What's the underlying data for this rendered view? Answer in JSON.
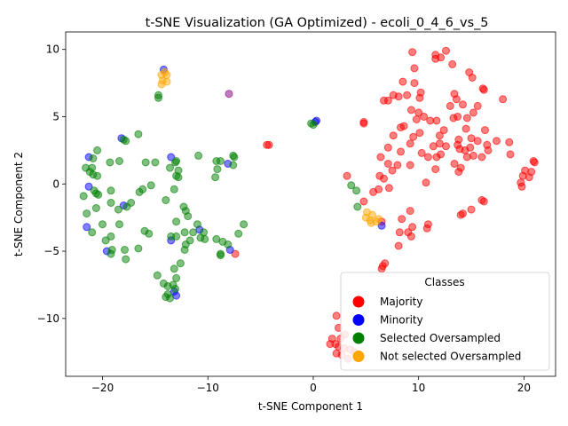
{
  "chart_data": {
    "type": "scatter",
    "title": "t-SNE Visualization (GA Optimized) - ecoli_0_4_6_vs_5",
    "xlabel": "t-SNE Component 1",
    "ylabel": "t-SNE Component 2",
    "xlim": [
      -23.5,
      23
    ],
    "ylim": [
      -14.3,
      11.3
    ],
    "xticks": [
      -20,
      -10,
      0,
      10,
      20
    ],
    "yticks": [
      -10,
      -5,
      0,
      5,
      10
    ],
    "grid": false,
    "legend": {
      "title": "Classes",
      "placement": "lower-right"
    },
    "series": [
      {
        "name": "Majority",
        "color": "#ff0000",
        "points": [
          [
            9.4,
            9.8
          ],
          [
            11.6,
            9.6
          ],
          [
            11.6,
            9.3
          ],
          [
            12.1,
            9.4
          ],
          [
            12.6,
            9.9
          ],
          [
            13.2,
            8.9
          ],
          [
            9.6,
            8.6
          ],
          [
            14.8,
            8.3
          ],
          [
            15.1,
            7.9
          ],
          [
            8.5,
            7.6
          ],
          [
            9.6,
            7.5
          ],
          [
            16.1,
            7.1
          ],
          [
            16.2,
            7.0
          ],
          [
            7.6,
            6.6
          ],
          [
            8.1,
            6.5
          ],
          [
            8.9,
            6.6
          ],
          [
            10.2,
            6.8
          ],
          [
            10.1,
            6.4
          ],
          [
            13.4,
            6.7
          ],
          [
            13.6,
            6.3
          ],
          [
            6.7,
            6.2
          ],
          [
            7.1,
            6.2
          ],
          [
            18.0,
            6.3
          ],
          [
            15.6,
            5.8
          ],
          [
            14.2,
            5.9
          ],
          [
            13.0,
            5.8
          ],
          [
            9.3,
            5.5
          ],
          [
            10.0,
            5.3
          ],
          [
            10.5,
            5.0
          ],
          [
            11.1,
            4.7
          ],
          [
            11.7,
            4.7
          ],
          [
            13.3,
            4.9
          ],
          [
            13.7,
            5.0
          ],
          [
            14.6,
            4.9
          ],
          [
            15.2,
            5.3
          ],
          [
            9.8,
            4.8
          ],
          [
            4.8,
            4.5
          ],
          [
            4.8,
            4.6
          ],
          [
            8.6,
            4.3
          ],
          [
            8.3,
            4.2
          ],
          [
            10.1,
            3.8
          ],
          [
            12.4,
            4.0
          ],
          [
            14.5,
            4.1
          ],
          [
            16.3,
            4.0
          ],
          [
            7.6,
            3.6
          ],
          [
            9.5,
            3.5
          ],
          [
            12.0,
            3.6
          ],
          [
            13.8,
            3.3
          ],
          [
            15.0,
            3.4
          ],
          [
            15.6,
            3.2
          ],
          [
            17.4,
            3.2
          ],
          [
            18.6,
            3.1
          ],
          [
            16.5,
            2.9
          ],
          [
            7.1,
            2.7
          ],
          [
            9.2,
            3.0
          ],
          [
            11.4,
            2.8
          ],
          [
            12.0,
            3.0
          ],
          [
            12.6,
            2.8
          ],
          [
            13.7,
            2.9
          ],
          [
            14.9,
            2.7
          ],
          [
            16.6,
            2.5
          ],
          [
            8.3,
            2.4
          ],
          [
            10.3,
            2.3
          ],
          [
            13.9,
            2.6
          ],
          [
            14.4,
            2.5
          ],
          [
            18.7,
            2.2
          ],
          [
            6.4,
            2.0
          ],
          [
            10.9,
            2.0
          ],
          [
            11.7,
            2.0
          ],
          [
            12.1,
            2.2
          ],
          [
            14.6,
            2.0
          ],
          [
            15.2,
            2.1
          ],
          [
            16.0,
            2.0
          ],
          [
            7.1,
            1.5
          ],
          [
            8.0,
            1.4
          ],
          [
            9.2,
            1.4
          ],
          [
            11.6,
            1.1
          ],
          [
            13.4,
            1.5
          ],
          [
            14.0,
            1.2
          ],
          [
            13.8,
            0.9
          ],
          [
            7.5,
            1.0
          ],
          [
            20.9,
            1.7
          ],
          [
            21.0,
            1.6
          ],
          [
            20.1,
            1.0
          ],
          [
            20.5,
            0.5
          ],
          [
            19.9,
            0.6
          ],
          [
            19.7,
            0.1
          ],
          [
            19.8,
            -0.2
          ],
          [
            20.7,
            0.9
          ],
          [
            3.2,
            0.6
          ],
          [
            6.3,
            0.6
          ],
          [
            6.7,
            0.4
          ],
          [
            10.7,
            0.1
          ],
          [
            6.2,
            -0.4
          ],
          [
            7.2,
            -0.3
          ],
          [
            5.7,
            -0.6
          ],
          [
            4.8,
            -1.3
          ],
          [
            16.0,
            -1.2
          ],
          [
            16.2,
            -1.3
          ],
          [
            15.0,
            -1.9
          ],
          [
            14.2,
            -2.2
          ],
          [
            14.0,
            -2.3
          ],
          [
            9.2,
            -2.0
          ],
          [
            8.4,
            -2.6
          ],
          [
            6.5,
            -2.8
          ],
          [
            10.9,
            -3.0
          ],
          [
            10.8,
            -3.3
          ],
          [
            9.4,
            -3.2
          ],
          [
            8.2,
            -3.6
          ],
          [
            9.0,
            -3.6
          ],
          [
            9.3,
            -3.9
          ],
          [
            8.1,
            -4.6
          ],
          [
            6.8,
            -5.9
          ],
          [
            6.6,
            -6.1
          ],
          [
            6.5,
            -6.3
          ],
          [
            -7.4,
            -5.2
          ],
          [
            -4.4,
            2.9
          ],
          [
            -4.2,
            2.9
          ],
          [
            2.2,
            -9.8
          ],
          [
            1.8,
            -11.5
          ],
          [
            2.6,
            -11.5
          ],
          [
            1.6,
            -11.9
          ],
          [
            2.1,
            -11.9
          ],
          [
            2.4,
            -12.1
          ],
          [
            2.9,
            -12.2
          ],
          [
            3.5,
            -12.3
          ],
          [
            2.2,
            -12.6
          ],
          [
            2.7,
            -12.7
          ],
          [
            3.3,
            -13.0
          ],
          [
            3.9,
            -12.5
          ],
          [
            2.4,
            -10.7
          ],
          [
            3.0,
            -11.2
          ]
        ]
      },
      {
        "name": "Minority",
        "color": "#0000ff",
        "points": [
          [
            -14.2,
            8.5
          ],
          [
            0.2,
            4.6
          ],
          [
            0.3,
            4.7
          ],
          [
            -18.2,
            3.4
          ],
          [
            -13.5,
            2.0
          ],
          [
            -21.3,
            2.0
          ],
          [
            -8.1,
            1.5
          ],
          [
            -21.3,
            -0.2
          ],
          [
            -18.0,
            -1.6
          ],
          [
            -10.8,
            -3.4
          ],
          [
            -21.5,
            -3.2
          ],
          [
            -19.6,
            -5.0
          ],
          [
            -13.5,
            -4.2
          ],
          [
            -7.9,
            -4.9
          ],
          [
            -13.2,
            -8.0
          ],
          [
            -13.0,
            -8.3
          ],
          [
            6.5,
            -3.1
          ]
        ]
      },
      {
        "name": "Selected Oversampled",
        "color": "#008000",
        "points": [
          [
            -14.7,
            6.6
          ],
          [
            -14.7,
            6.4
          ],
          [
            -16.6,
            3.7
          ],
          [
            -17.8,
            3.2
          ],
          [
            -18.0,
            3.3
          ],
          [
            -10.9,
            2.1
          ],
          [
            -7.6,
            2.1
          ],
          [
            -7.5,
            2.0
          ],
          [
            -9.2,
            1.7
          ],
          [
            -8.8,
            1.7
          ],
          [
            -7.6,
            1.4
          ],
          [
            -9.1,
            1.1
          ],
          [
            -13.6,
            1.2
          ],
          [
            -13.1,
            1.6
          ],
          [
            -13.0,
            1.7
          ],
          [
            -12.8,
            1.0
          ],
          [
            -13.0,
            0.6
          ],
          [
            -12.8,
            0.5
          ],
          [
            -15.9,
            1.6
          ],
          [
            -15.0,
            1.6
          ],
          [
            -9.3,
            0.5
          ],
          [
            -20.5,
            2.5
          ],
          [
            -20.9,
            1.9
          ],
          [
            -21.6,
            1.2
          ],
          [
            -21.0,
            1.2
          ],
          [
            -21.2,
            0.9
          ],
          [
            -20.5,
            0.6
          ],
          [
            -20.9,
            0.7
          ],
          [
            -19.3,
            1.6
          ],
          [
            -18.4,
            1.7
          ],
          [
            -19.2,
            -0.5
          ],
          [
            -20.8,
            -0.5
          ],
          [
            -20.6,
            -0.7
          ],
          [
            -20.4,
            -0.8
          ],
          [
            -21.8,
            -0.9
          ],
          [
            -16.5,
            -0.6
          ],
          [
            -16.2,
            -0.4
          ],
          [
            -15.4,
            -0.1
          ],
          [
            -19.2,
            -1.4
          ],
          [
            -17.7,
            -1.7
          ],
          [
            -17.3,
            -1.4
          ],
          [
            -18.5,
            -1.9
          ],
          [
            -20.6,
            -1.8
          ],
          [
            -21.5,
            -2.2
          ],
          [
            -14.0,
            -1.2
          ],
          [
            -13.2,
            -0.4
          ],
          [
            -12.3,
            -1.7
          ],
          [
            -12.1,
            -2.0
          ],
          [
            -11.9,
            -2.4
          ],
          [
            -13.0,
            -2.8
          ],
          [
            -16.0,
            -3.5
          ],
          [
            -15.6,
            -3.7
          ],
          [
            -18.4,
            -3.0
          ],
          [
            -20.0,
            -3.0
          ],
          [
            -21.0,
            -3.6
          ],
          [
            -19.2,
            -3.9
          ],
          [
            -19.7,
            -4.2
          ],
          [
            -17.9,
            -4.9
          ],
          [
            -16.6,
            -4.8
          ],
          [
            -19.1,
            -4.9
          ],
          [
            -19.2,
            -5.2
          ],
          [
            -17.8,
            -5.6
          ],
          [
            -13.5,
            -3.9
          ],
          [
            -13.0,
            -3.9
          ],
          [
            -12.2,
            -3.6
          ],
          [
            -11.4,
            -3.6
          ],
          [
            -11.0,
            -3.0
          ],
          [
            -10.4,
            -3.6
          ],
          [
            -10.3,
            -4.1
          ],
          [
            -10.7,
            -4.0
          ],
          [
            -12.1,
            -4.5
          ],
          [
            -11.7,
            -4.2
          ],
          [
            -12.2,
            -4.9
          ],
          [
            -9.2,
            -4.1
          ],
          [
            -8.6,
            -4.3
          ],
          [
            -8.1,
            -4.5
          ],
          [
            -7.1,
            -3.7
          ],
          [
            -6.6,
            -3.0
          ],
          [
            -12.6,
            -5.9
          ],
          [
            -13.2,
            -6.3
          ],
          [
            -14.8,
            -6.8
          ],
          [
            -13.0,
            -7.0
          ],
          [
            -14.2,
            -7.4
          ],
          [
            -13.8,
            -7.6
          ],
          [
            -13.3,
            -7.5
          ],
          [
            -13.1,
            -7.8
          ],
          [
            -13.8,
            -8.2
          ],
          [
            -14.0,
            -8.4
          ],
          [
            -13.6,
            -8.5
          ],
          [
            -8.8,
            -5.3
          ],
          [
            -8.8,
            -5.2
          ],
          [
            -0.2,
            4.5
          ],
          [
            0.0,
            4.4
          ],
          [
            3.6,
            -0.1
          ],
          [
            4.1,
            -0.5
          ],
          [
            4.2,
            -1.7
          ]
        ]
      },
      {
        "name": "Not selected Oversampled",
        "color": "#ffa500",
        "points": [
          [
            -14.1,
            8.3
          ],
          [
            -14.4,
            8.1
          ],
          [
            -13.9,
            8.1
          ],
          [
            -14.3,
            7.7
          ],
          [
            -13.9,
            7.6
          ],
          [
            -14.4,
            7.4
          ],
          [
            5.1,
            -2.1
          ],
          [
            5.6,
            -2.3
          ],
          [
            5.0,
            -2.5
          ],
          [
            6.2,
            -2.6
          ],
          [
            5.4,
            -2.7
          ],
          [
            5.5,
            -2.9
          ],
          [
            6.0,
            -2.8
          ]
        ]
      },
      {
        "name": "",
        "color": "#800080",
        "points": [
          [
            -8.0,
            6.7
          ]
        ]
      }
    ]
  }
}
